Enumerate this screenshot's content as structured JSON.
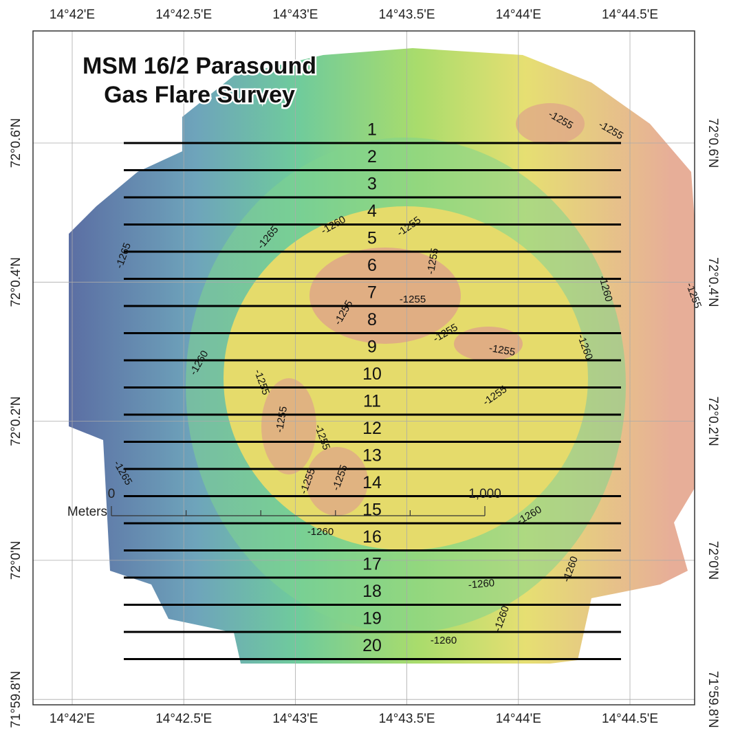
{
  "title": [
    "MSM 16/2 Parasound",
    "Gas Flare Survey"
  ],
  "longitude_labels": [
    "14°42'E",
    "14°42.5'E",
    "14°43'E",
    "14°43.5'E",
    "14°44'E",
    "14°44.5'E"
  ],
  "latitude_labels": [
    "72°0.6'N",
    "72°0.4'N",
    "72°0.2'N",
    "72°0'N",
    "71°59.8'N"
  ],
  "survey_lines": [
    "1",
    "2",
    "3",
    "4",
    "5",
    "6",
    "7",
    "8",
    "9",
    "10",
    "11",
    "12",
    "13",
    "14",
    "15",
    "16",
    "17",
    "18",
    "19",
    "20"
  ],
  "contour_labels": [
    "-1255",
    "-1255",
    "-1265",
    "-1265",
    "-1260",
    "-1255",
    "-1255",
    "-1255",
    "-1260",
    "-1255",
    "-1255",
    "-1255",
    "-1260",
    "-1255",
    "-1260",
    "-1255",
    "-1255",
    "-1255",
    "-1255",
    "-1265",
    "-1255",
    "-1255",
    "-1260",
    "-1260",
    "-1260",
    "-1260",
    "-1260",
    "-1260"
  ],
  "scale_bar": {
    "unit": "Meters",
    "start": "0",
    "end": "1,000"
  }
}
